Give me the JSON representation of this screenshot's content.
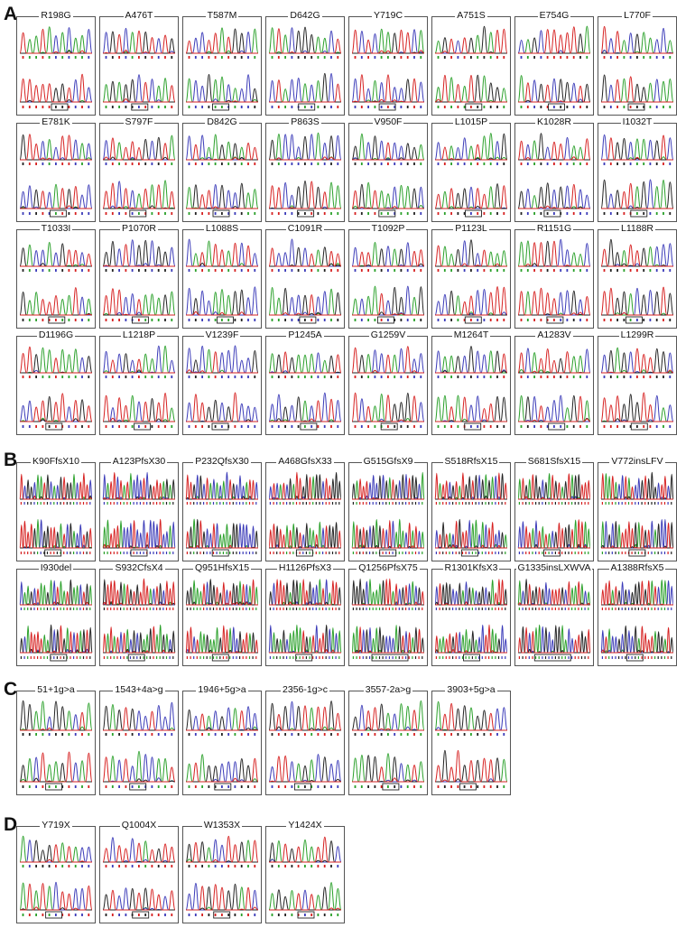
{
  "sections": [
    {
      "letter": "A",
      "rows": [
        [
          "R198G",
          "A476T",
          "T587M",
          "D642G",
          "Y719C",
          "A751S",
          "E754G",
          "L770F"
        ],
        [
          "E781K",
          "S797F",
          "D842G",
          "P863S",
          "V950F",
          "L1015P",
          "K1028R",
          "I1032T"
        ],
        [
          "T1033I",
          "P1070R",
          "L1088S",
          "C1091R",
          "T1092P",
          "P1123L",
          "R1151G",
          "L1188R"
        ],
        [
          "D1196G",
          "L1218P",
          "V1239F",
          "P1245A",
          "G1259V",
          "M1264T",
          "A1283V",
          "L1299R"
        ]
      ]
    },
    {
      "letter": "B",
      "rows": [
        [
          "K90FfsX10",
          "A123PfsX30",
          "P232QfsX30",
          "A468GfsX33",
          "G515GfsX9",
          "S518RfsX15",
          "S681SfsX15",
          "V772insLFV"
        ],
        [
          "I930del",
          "S932CfsX4",
          "Q951HfsX15",
          "H1126PfsX3",
          "Q1256PfsX75",
          "R1301KfsX3",
          "G1335insLXWVA",
          "A1388RfsX5"
        ]
      ]
    },
    {
      "letter": "C",
      "rows": [
        [
          "51+1g>a",
          "1543+4a>g",
          "1946+5g>a",
          "2356-1g>c",
          "3557-2a>g",
          "3903+5g>a"
        ]
      ]
    },
    {
      "letter": "D",
      "rows": [
        [
          "Y719X",
          "Q1004X",
          "W1353X",
          "Y1424X"
        ]
      ]
    }
  ],
  "colors": {
    "A": "#2aa02a",
    "C": "#3a3ab8",
    "G": "#222222",
    "T": "#d62020",
    "border": "#555555"
  }
}
